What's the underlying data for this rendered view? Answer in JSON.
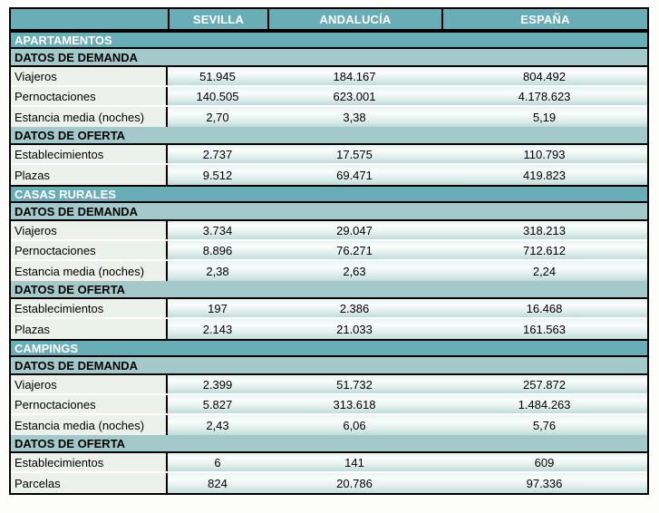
{
  "colors": {
    "header_teal": "#69AEB6",
    "subheader_teal": "#A3C9CB",
    "label_bg": "#EDF1EB",
    "cell_grad_top": "#E9F4F1",
    "cell_grad_mid": "#FAFDFC",
    "cell_grad_low": "#DFEEEB",
    "cell_grad_bottom": "#C0DCD9",
    "border_black": "#000000",
    "page_bg": "#FDFDFB"
  },
  "table": {
    "columns": [
      "",
      "SEVILLA",
      "ANDALUCÍA",
      "ESPAÑA"
    ],
    "sections": [
      {
        "title": "APARTAMENTOS",
        "groups": [
          {
            "title": "DATOS DE DEMANDA",
            "rows": [
              {
                "label": "Viajeros",
                "values": [
                  "51.945",
                  "184.167",
                  "804.492"
                ]
              },
              {
                "label": "Pernoctaciones",
                "values": [
                  "140.505",
                  "623.001",
                  "4.178.623"
                ]
              },
              {
                "label": "Estancia media (noches)",
                "values": [
                  "2,70",
                  "3,38",
                  "5,19"
                ]
              }
            ]
          },
          {
            "title": "DATOS DE OFERTA",
            "rows": [
              {
                "label": "Establecimientos",
                "values": [
                  "2.737",
                  "17.575",
                  "110.793"
                ]
              },
              {
                "label": "Plazas",
                "values": [
                  "9.512",
                  "69.471",
                  "419.823"
                ]
              }
            ]
          }
        ]
      },
      {
        "title": "CASAS RURALES",
        "groups": [
          {
            "title": "DATOS DE DEMANDA",
            "rows": [
              {
                "label": "Viajeros",
                "values": [
                  "3.734",
                  "29.047",
                  "318.213"
                ]
              },
              {
                "label": "Pernoctaciones",
                "values": [
                  "8.896",
                  "76.271",
                  "712.612"
                ]
              },
              {
                "label": "Estancia media (noches)",
                "values": [
                  "2,38",
                  "2,63",
                  "2,24"
                ]
              }
            ]
          },
          {
            "title": "DATOS DE OFERTA",
            "rows": [
              {
                "label": "Establecimientos",
                "values": [
                  "197",
                  "2.386",
                  "16.468"
                ]
              },
              {
                "label": "Plazas",
                "values": [
                  "2.143",
                  "21.033",
                  "161.563"
                ]
              }
            ]
          }
        ]
      },
      {
        "title": "CAMPINGS",
        "groups": [
          {
            "title": "DATOS DE DEMANDA",
            "rows": [
              {
                "label": "Viajeros",
                "values": [
                  "2.399",
                  "51.732",
                  "257.872"
                ]
              },
              {
                "label": "Pernoctaciones",
                "values": [
                  "5.827",
                  "313.618",
                  "1.484.263"
                ]
              },
              {
                "label": "Estancia media (noches)",
                "values": [
                  "2,43",
                  "6,06",
                  "5,76"
                ]
              }
            ]
          },
          {
            "title": "DATOS DE OFERTA",
            "rows": [
              {
                "label": "Establecimientos",
                "values": [
                  "6",
                  "141",
                  "609"
                ]
              },
              {
                "label": "Parcelas",
                "values": [
                  "824",
                  "20.786",
                  "97.336"
                ]
              }
            ]
          }
        ]
      }
    ]
  }
}
